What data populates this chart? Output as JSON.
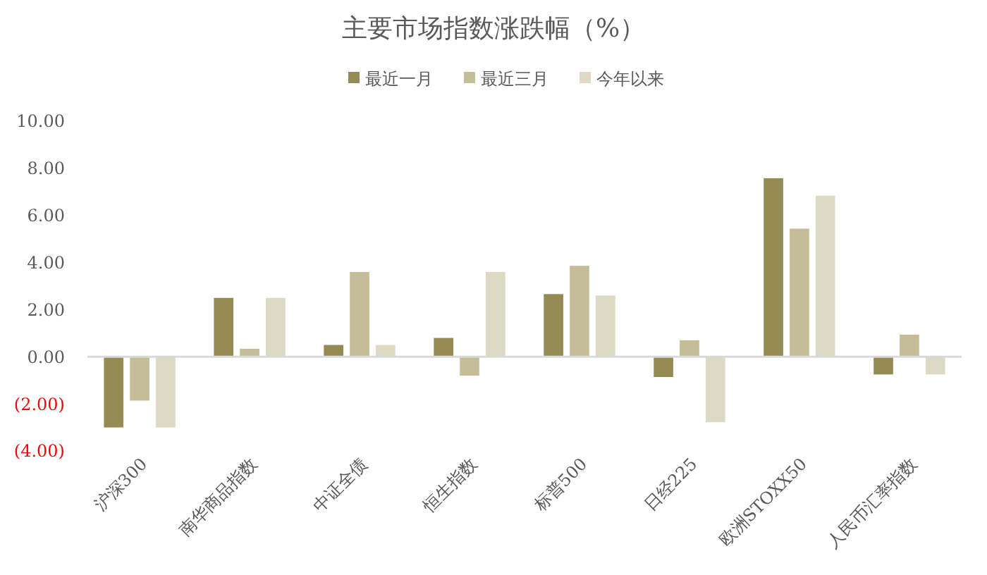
{
  "chart_data": {
    "type": "bar",
    "title": "主要市场指数涨跌幅（%）",
    "categories": [
      "沪深300",
      "南华商品指数",
      "中证全债",
      "恒生指数",
      "标普500",
      "日经225",
      "欧洲STOXX50",
      "人民币汇率指数"
    ],
    "series": [
      {
        "name": "最近一月",
        "color": "#948a54",
        "values": [
          -3.0,
          2.5,
          0.5,
          0.8,
          2.66,
          -0.86,
          7.58,
          -0.75
        ]
      },
      {
        "name": "最近三月",
        "color": "#c4bd97",
        "values": [
          -1.86,
          0.34,
          3.6,
          -0.8,
          3.86,
          0.7,
          5.44,
          0.94
        ]
      },
      {
        "name": "今年以来",
        "color": "#ddd9c3",
        "values": [
          -3.0,
          2.5,
          0.5,
          3.6,
          2.6,
          -2.78,
          6.84,
          -0.75
        ]
      }
    ],
    "ylim": [
      -4,
      10
    ],
    "yticks": [
      {
        "value": -4,
        "label": "(4.00)"
      },
      {
        "value": -2,
        "label": "(2.00)"
      },
      {
        "value": 0,
        "label": "0.00"
      },
      {
        "value": 2,
        "label": "2.00"
      },
      {
        "value": 4,
        "label": "4.00"
      },
      {
        "value": 6,
        "label": "6.00"
      },
      {
        "value": 8,
        "label": "8.00"
      },
      {
        "value": 10,
        "label": "10.00"
      }
    ],
    "legend": "top"
  }
}
